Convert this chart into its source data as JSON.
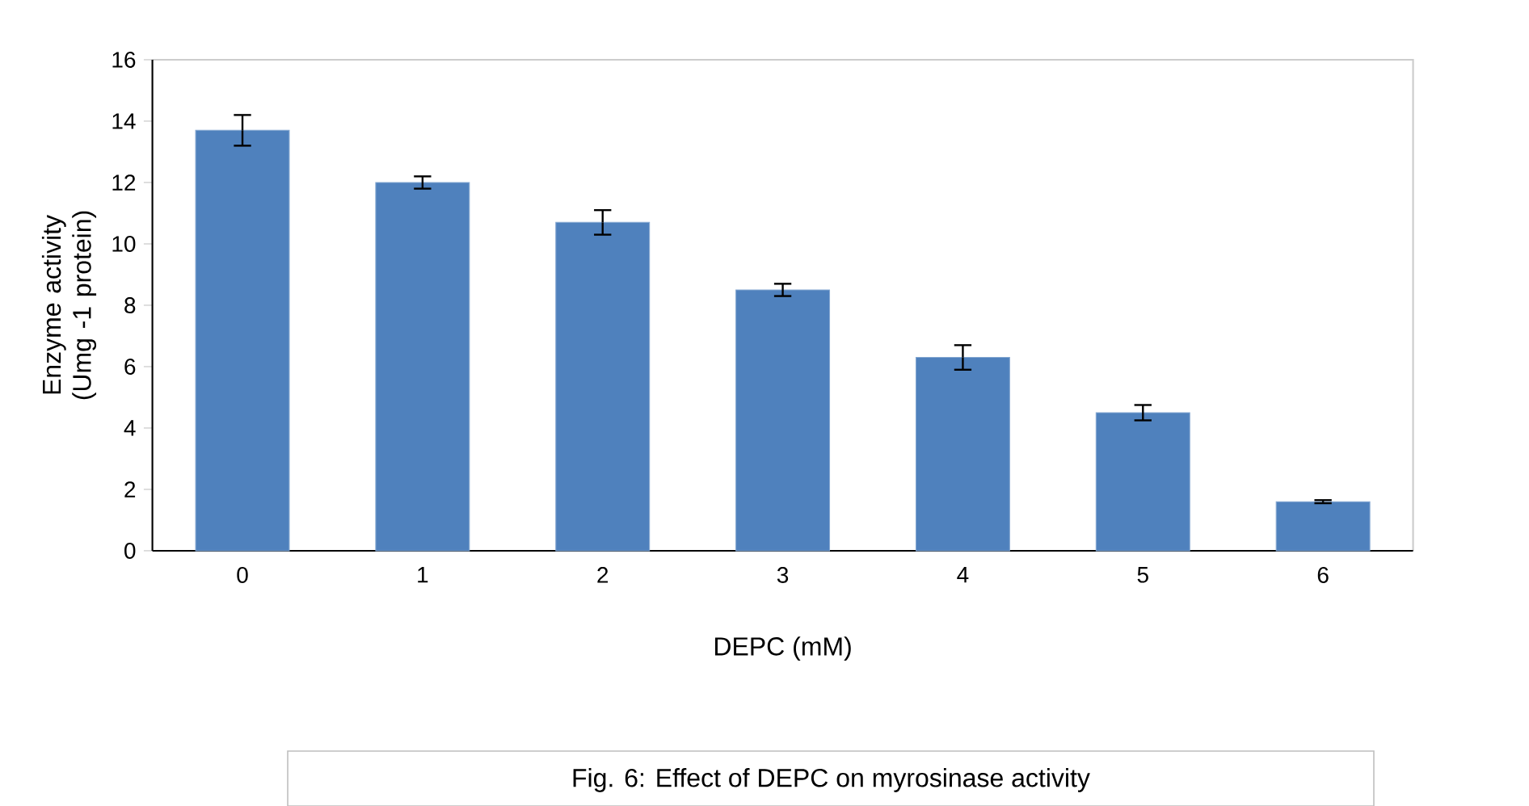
{
  "chart_data": {
    "type": "bar",
    "xlabel": "DEPC (mM)",
    "ylabel": "Enzyme activity (Umg -1 protein)",
    "annotations": [
      "Fig. 6: Effect of DEPC on myrosinase activity"
    ],
    "categories": [
      "0",
      "1",
      "2",
      "3",
      "4",
      "5",
      "6"
    ],
    "values": [
      13.7,
      12.0,
      10.7,
      8.5,
      6.3,
      4.5,
      1.6
    ],
    "errors": [
      0.5,
      0.2,
      0.4,
      0.2,
      0.4,
      0.25,
      0.05
    ],
    "color": "#4f81bd",
    "ylim": [
      0,
      16
    ],
    "yticks": [
      0,
      2,
      4,
      6,
      8,
      10,
      12,
      14,
      16
    ]
  }
}
